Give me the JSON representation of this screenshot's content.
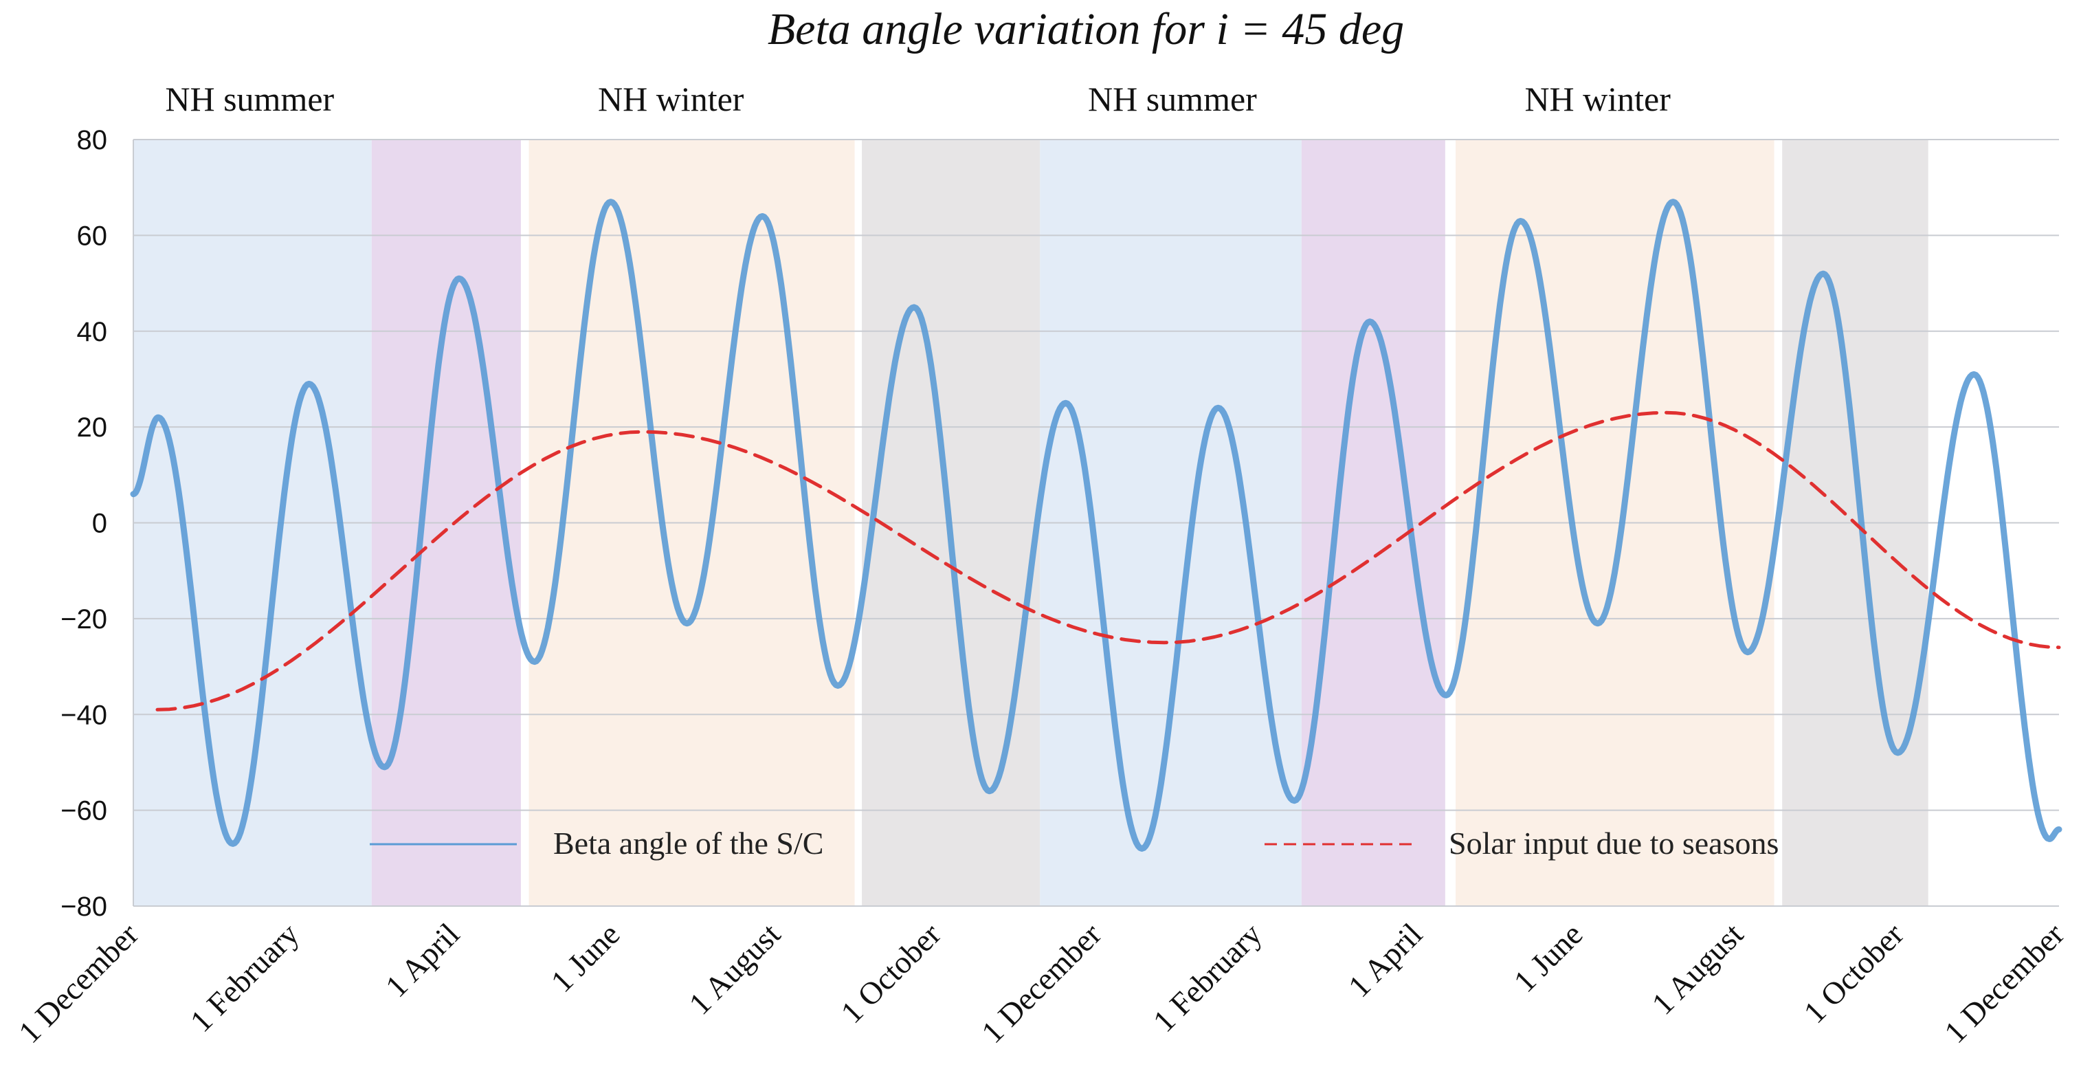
{
  "chart_data": {
    "type": "line",
    "title": "Beta angle variation for i = 45 deg",
    "xlabel": "",
    "ylabel": "",
    "ylim": [
      -80,
      80
    ],
    "yticks": [
      80,
      60,
      40,
      20,
      0,
      -20,
      -40,
      -60,
      -80
    ],
    "ytick_labels": [
      "80",
      "60",
      "40",
      "20",
      "0",
      "−20",
      "−40",
      "−60",
      "−80"
    ],
    "x_unit": "months elapsed from 1 December",
    "xlim": [
      0,
      24
    ],
    "x_ticks": [
      {
        "x": 0,
        "label": "1 December"
      },
      {
        "x": 2,
        "label": "1 February"
      },
      {
        "x": 4,
        "label": "1 April"
      },
      {
        "x": 6,
        "label": "1 June"
      },
      {
        "x": 8,
        "label": "1 August"
      },
      {
        "x": 10,
        "label": "1 October"
      },
      {
        "x": 12,
        "label": "1 December"
      },
      {
        "x": 14,
        "label": "1 February"
      },
      {
        "x": 16,
        "label": "1 April"
      },
      {
        "x": 18,
        "label": "1 June"
      },
      {
        "x": 20,
        "label": "1 August"
      },
      {
        "x": 22,
        "label": "1 October"
      },
      {
        "x": 24,
        "label": "1 December"
      }
    ],
    "grid": true,
    "legend_position": "bottom",
    "season_labels": [
      {
        "text": "NH summer",
        "x": 1.45,
        "y": 86
      },
      {
        "text": "NH winter",
        "x": 6.7,
        "y": 86
      },
      {
        "text": "NH summer",
        "x": 12.95,
        "y": 86
      },
      {
        "text": "NH winter",
        "x": 18.25,
        "y": 86
      }
    ],
    "bands": [
      {
        "x0": 0.0,
        "x1": 2.97,
        "color": "#e3ecf7"
      },
      {
        "x0": 2.97,
        "x1": 4.83,
        "color": "#e8d9ee"
      },
      {
        "x0": 4.93,
        "x1": 8.99,
        "color": "#fbf0e7"
      },
      {
        "x0": 9.08,
        "x1": 11.3,
        "color": "#e7e5e6"
      },
      {
        "x0": 11.3,
        "x1": 14.56,
        "color": "#e3ecf7"
      },
      {
        "x0": 14.56,
        "x1": 16.35,
        "color": "#e8d9ee"
      },
      {
        "x0": 16.48,
        "x1": 20.45,
        "color": "#fbf0e7"
      },
      {
        "x0": 20.55,
        "x1": 22.37,
        "color": "#e7e5e6"
      }
    ],
    "series": [
      {
        "name": "Beta angle of the S/C",
        "color": "#5b9bd5",
        "style": "solid",
        "extrema": [
          {
            "x": 0.0,
            "y": 6
          },
          {
            "x": 0.31,
            "y": 22
          },
          {
            "x": 1.24,
            "y": -67
          },
          {
            "x": 2.19,
            "y": 29
          },
          {
            "x": 3.13,
            "y": -51
          },
          {
            "x": 4.06,
            "y": 51
          },
          {
            "x": 5.0,
            "y": -29
          },
          {
            "x": 5.95,
            "y": 67
          },
          {
            "x": 6.9,
            "y": -21
          },
          {
            "x": 7.84,
            "y": 64
          },
          {
            "x": 8.78,
            "y": -34
          },
          {
            "x": 9.73,
            "y": 45
          },
          {
            "x": 10.67,
            "y": -56
          },
          {
            "x": 11.62,
            "y": 25
          },
          {
            "x": 12.57,
            "y": -68
          },
          {
            "x": 13.52,
            "y": 24
          },
          {
            "x": 14.47,
            "y": -58
          },
          {
            "x": 15.41,
            "y": 42
          },
          {
            "x": 16.36,
            "y": -36
          },
          {
            "x": 17.29,
            "y": 63
          },
          {
            "x": 18.25,
            "y": -21
          },
          {
            "x": 19.19,
            "y": 67
          },
          {
            "x": 20.12,
            "y": -27
          },
          {
            "x": 21.06,
            "y": 52
          },
          {
            "x": 21.99,
            "y": -48
          },
          {
            "x": 22.94,
            "y": 31
          },
          {
            "x": 23.88,
            "y": -66
          },
          {
            "x": 24.0,
            "y": -64
          }
        ]
      },
      {
        "name": "Solar input due to seasons",
        "color": "#e03030",
        "style": "dashed",
        "extrema": [
          {
            "x": 0.3,
            "y": -39
          },
          {
            "x": 6.35,
            "y": 19
          },
          {
            "x": 12.85,
            "y": -25
          },
          {
            "x": 19.1,
            "y": 23
          },
          {
            "x": 24.0,
            "y": -26
          }
        ]
      }
    ]
  }
}
